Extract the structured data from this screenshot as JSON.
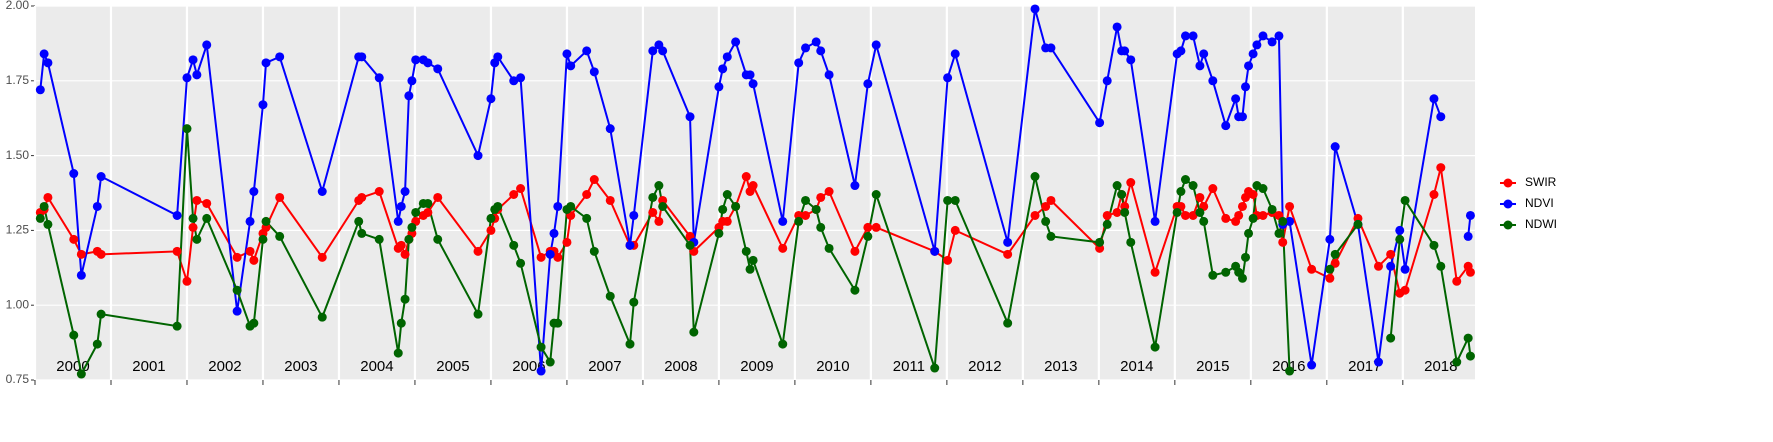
{
  "chart_data": {
    "type": "line",
    "x": [
      2000.07,
      2000.12,
      2000.17,
      2000.51,
      2000.61,
      2000.82,
      2000.87,
      2001.87,
      2002.0,
      2002.08,
      2002.13,
      2002.26,
      2002.66,
      2002.83,
      2002.88,
      2003.0,
      2003.04,
      2003.22,
      2003.78,
      2004.26,
      2004.3,
      2004.53,
      2004.78,
      2004.82,
      2004.87,
      2004.92,
      2004.96,
      2005.01,
      2005.11,
      2005.17,
      2005.3,
      2005.83,
      2006.0,
      2006.05,
      2006.09,
      2006.3,
      2006.39,
      2006.66,
      2006.78,
      2006.83,
      2006.88,
      2007.0,
      2007.05,
      2007.26,
      2007.36,
      2007.57,
      2007.83,
      2007.88,
      2008.13,
      2008.21,
      2008.26,
      2008.62,
      2008.67,
      2009.0,
      2009.05,
      2009.11,
      2009.22,
      2009.36,
      2009.41,
      2009.45,
      2009.84,
      2010.05,
      2010.14,
      2010.28,
      2010.34,
      2010.45,
      2010.79,
      2010.96,
      2011.07,
      2011.84,
      2012.01,
      2012.11,
      2012.8,
      2013.16,
      2013.3,
      2013.37,
      2014.01,
      2014.11,
      2014.24,
      2014.3,
      2014.34,
      2014.42,
      2014.74,
      2015.03,
      2015.08,
      2015.14,
      2015.24,
      2015.33,
      2015.38,
      2015.5,
      2015.67,
      2015.8,
      2015.84,
      2015.89,
      2015.93,
      2015.97,
      2016.03,
      2016.08,
      2016.16,
      2016.28,
      2016.37,
      2016.42,
      2016.51,
      2016.8,
      2017.04,
      2017.11,
      2017.41,
      2017.68,
      2017.84,
      2017.96,
      2018.03,
      2018.41,
      2018.5,
      2018.71,
      2018.86,
      2018.89
    ],
    "series": [
      {
        "name": "SWIR",
        "color": "#ff0000",
        "values": [
          1.31,
          1.32,
          1.36,
          1.22,
          1.17,
          1.18,
          1.17,
          1.18,
          1.08,
          1.26,
          1.35,
          1.34,
          1.16,
          1.18,
          1.15,
          1.24,
          1.26,
          1.36,
          1.16,
          1.35,
          1.36,
          1.38,
          1.19,
          1.2,
          1.17,
          1.22,
          1.24,
          1.28,
          1.3,
          1.31,
          1.36,
          1.18,
          1.25,
          1.29,
          1.32,
          1.37,
          1.39,
          1.16,
          1.18,
          1.18,
          1.16,
          1.21,
          1.3,
          1.37,
          1.42,
          1.35,
          1.2,
          1.2,
          1.31,
          1.28,
          1.35,
          1.23,
          1.18,
          1.26,
          1.28,
          1.28,
          1.33,
          1.43,
          1.38,
          1.4,
          1.19,
          1.3,
          1.3,
          1.32,
          1.36,
          1.38,
          1.18,
          1.26,
          1.26,
          1.18,
          1.15,
          1.25,
          1.17,
          1.3,
          1.33,
          1.35,
          1.19,
          1.3,
          1.31,
          1.37,
          1.33,
          1.41,
          1.11,
          1.33,
          1.33,
          1.3,
          1.3,
          1.36,
          1.33,
          1.39,
          1.29,
          1.28,
          1.3,
          1.33,
          1.36,
          1.38,
          1.37,
          1.3,
          1.3,
          1.31,
          1.3,
          1.21,
          1.33,
          1.12,
          1.09,
          1.14,
          1.29,
          1.13,
          1.17,
          1.04,
          1.05,
          1.37,
          1.46,
          1.08,
          1.13,
          1.11
        ]
      },
      {
        "name": "NDVI",
        "color": "#0000ff",
        "values": [
          1.72,
          1.84,
          1.81,
          1.44,
          1.1,
          1.33,
          1.43,
          1.3,
          1.76,
          1.82,
          1.77,
          1.87,
          0.98,
          1.28,
          1.38,
          1.67,
          1.81,
          1.83,
          1.38,
          1.83,
          1.83,
          1.76,
          1.28,
          1.33,
          1.38,
          1.7,
          1.75,
          1.82,
          1.82,
          1.81,
          1.79,
          1.5,
          1.69,
          1.81,
          1.83,
          1.75,
          1.76,
          0.78,
          1.17,
          1.24,
          1.33,
          1.84,
          1.8,
          1.85,
          1.78,
          1.59,
          1.2,
          1.3,
          1.85,
          1.87,
          1.85,
          1.63,
          1.21,
          1.73,
          1.79,
          1.83,
          1.88,
          1.77,
          1.77,
          1.74,
          1.28,
          1.81,
          1.86,
          1.88,
          1.85,
          1.77,
          1.4,
          1.74,
          1.87,
          1.18,
          1.76,
          1.84,
          1.21,
          1.99,
          1.86,
          1.86,
          1.61,
          1.75,
          1.93,
          1.85,
          1.85,
          1.82,
          1.28,
          1.84,
          1.85,
          1.9,
          1.9,
          1.8,
          1.84,
          1.75,
          1.6,
          1.69,
          1.63,
          1.63,
          1.73,
          1.8,
          1.84,
          1.87,
          1.9,
          1.88,
          1.9,
          1.27,
          1.28,
          0.8,
          1.22,
          1.53,
          1.27,
          0.81,
          1.13,
          1.25,
          1.12,
          1.69,
          1.63,
          null,
          1.23,
          1.3
        ]
      },
      {
        "name": "NDWI",
        "color": "#006400",
        "values": [
          1.29,
          1.33,
          1.27,
          0.9,
          0.77,
          0.87,
          0.97,
          0.93,
          1.59,
          1.29,
          1.22,
          1.29,
          1.05,
          0.93,
          0.94,
          1.22,
          1.28,
          1.23,
          0.96,
          1.28,
          1.24,
          1.22,
          0.84,
          0.94,
          1.02,
          1.22,
          1.26,
          1.31,
          1.34,
          1.34,
          1.22,
          0.97,
          1.29,
          1.32,
          1.33,
          1.2,
          1.14,
          0.86,
          0.81,
          0.94,
          0.94,
          1.32,
          1.33,
          1.29,
          1.18,
          1.03,
          0.87,
          1.01,
          1.36,
          1.4,
          1.33,
          1.2,
          0.91,
          1.24,
          1.32,
          1.37,
          1.33,
          1.18,
          1.12,
          1.15,
          0.87,
          1.28,
          1.35,
          1.32,
          1.26,
          1.19,
          1.05,
          1.23,
          1.37,
          0.79,
          1.35,
          1.35,
          0.94,
          1.43,
          1.28,
          1.23,
          1.21,
          1.27,
          1.4,
          1.37,
          1.31,
          1.21,
          0.86,
          1.31,
          1.38,
          1.42,
          1.4,
          1.31,
          1.28,
          1.1,
          1.11,
          1.13,
          1.11,
          1.09,
          1.16,
          1.24,
          1.29,
          1.4,
          1.39,
          1.32,
          1.24,
          1.28,
          0.78,
          null,
          1.12,
          1.17,
          1.27,
          null,
          0.89,
          1.22,
          1.35,
          1.2,
          1.13,
          0.81,
          0.89,
          0.83
        ]
      }
    ],
    "xlim": [
      2000,
      2018.95
    ],
    "ylim": [
      0.75,
      2.0
    ],
    "xticks": [
      {
        "value": 2000,
        "label": "2000"
      },
      {
        "value": 2001,
        "label": "2001"
      },
      {
        "value": 2002,
        "label": "2002"
      },
      {
        "value": 2003,
        "label": "2003"
      },
      {
        "value": 2004,
        "label": "2004"
      },
      {
        "value": 2005,
        "label": "2005"
      },
      {
        "value": 2006,
        "label": "2006"
      },
      {
        "value": 2007,
        "label": "2007"
      },
      {
        "value": 2008,
        "label": "2008"
      },
      {
        "value": 2009,
        "label": "2009"
      },
      {
        "value": 2010,
        "label": "2010"
      },
      {
        "value": 2011,
        "label": "2011"
      },
      {
        "value": 2012,
        "label": "2012"
      },
      {
        "value": 2013,
        "label": "2013"
      },
      {
        "value": 2014,
        "label": "2014"
      },
      {
        "value": 2015,
        "label": "2015"
      },
      {
        "value": 2016,
        "label": "2016"
      },
      {
        "value": 2017,
        "label": "2017"
      },
      {
        "value": 2018,
        "label": "2018"
      }
    ],
    "yticks": [
      {
        "value": 0.75,
        "label": "0.75"
      },
      {
        "value": 1.0,
        "label": "1.00"
      },
      {
        "value": 1.25,
        "label": "1.25"
      },
      {
        "value": 1.5,
        "label": "1.50"
      },
      {
        "value": 1.75,
        "label": "1.75"
      },
      {
        "value": 2.0,
        "label": "2.00"
      }
    ],
    "grid": true,
    "legend": "right"
  }
}
